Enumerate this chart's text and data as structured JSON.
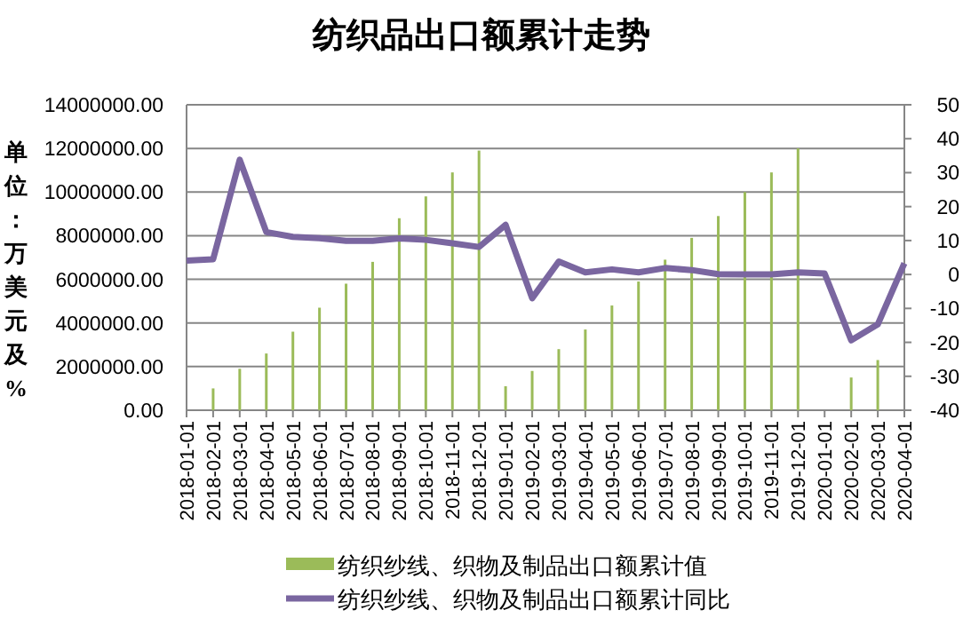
{
  "chart_data": {
    "type": "bar",
    "title": "纺织品出口额累计走势",
    "ylabel": "单位：万美元及%",
    "categories": [
      "2018-01-01",
      "2018-02-01",
      "2018-03-01",
      "2018-04-01",
      "2018-05-01",
      "2018-06-01",
      "2018-07-01",
      "2018-08-01",
      "2018-09-01",
      "2018-10-01",
      "2018-11-01",
      "2018-12-01",
      "2019-01-01",
      "2019-02-01",
      "2019-03-01",
      "2019-04-01",
      "2019-05-01",
      "2019-06-01",
      "2019-07-01",
      "2019-08-01",
      "2019-09-01",
      "2019-10-01",
      "2019-11-01",
      "2019-12-01",
      "2020-01-01",
      "2020-02-01",
      "2020-03-01",
      "2020-04-01"
    ],
    "series": [
      {
        "name": "纺织纱线、织物及制品出口额累计值",
        "color": "#9bbb59",
        "values": [
          null,
          1000000,
          1900000,
          2600000,
          3600000,
          4700000,
          5800000,
          6800000,
          8800000,
          9800000,
          10900000,
          11900000,
          1100000,
          1800000,
          2800000,
          3700000,
          4800000,
          5900000,
          6900000,
          7900000,
          8900000,
          10000000,
          10900000,
          12000000,
          null,
          1500000,
          2300000,
          null
        ]
      },
      {
        "name": "纺织纱线、织物及制品出口额累计同比",
        "type": "line",
        "axis": "y2",
        "color": "#7a66a0",
        "values": [
          4.1,
          4.5,
          33.8,
          12.5,
          11.1,
          10.7,
          9.9,
          9.9,
          10.6,
          10.2,
          9.2,
          8.1,
          14.6,
          -7,
          3.8,
          0.6,
          1.5,
          0.6,
          1.9,
          1.3,
          0.1,
          0,
          0,
          0.6,
          0.3,
          -19.4,
          -14.7,
          3.3
        ]
      }
    ],
    "ylim": [
      0,
      14000000
    ],
    "yticks": [
      {
        "value": 0,
        "label": "0.00"
      },
      {
        "value": 2000000,
        "label": "2000000.00"
      },
      {
        "value": 4000000,
        "label": "4000000.00"
      },
      {
        "value": 6000000,
        "label": "6000000.00"
      },
      {
        "value": 8000000,
        "label": "8000000.00"
      },
      {
        "value": 10000000,
        "label": "10000000.00"
      },
      {
        "value": 12000000,
        "label": "12000000.00"
      },
      {
        "value": 14000000,
        "label": "14000000.00"
      }
    ],
    "y2lim": [
      -40,
      50
    ],
    "y2ticks": [
      -40,
      -30,
      -20,
      -10,
      0,
      10,
      20,
      30,
      40,
      50
    ],
    "grid": "y",
    "legend": "bottom"
  }
}
